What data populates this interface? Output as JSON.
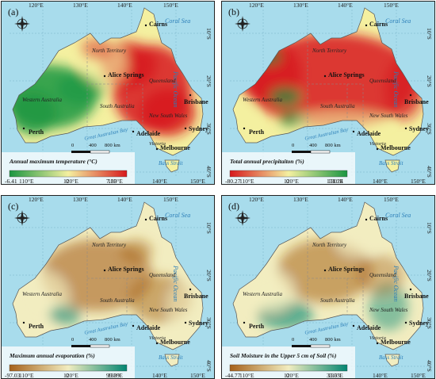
{
  "panels": [
    {
      "label": "(a)",
      "title": "Annual maximum temperature (°C)",
      "legend_min": "-6.41",
      "legend_mid": "0",
      "legend_max": "7.85",
      "scale_labels": [
        "0",
        "400",
        "800 km"
      ],
      "top_ticks": [
        "120°E",
        "130°E",
        "140°E",
        "150°E"
      ],
      "bottom_ticks": [
        "110°E",
        "120°E",
        "130°E",
        "140°E",
        "150°E"
      ],
      "left_ticks": [
        "10°S",
        "20°S",
        "30°S"
      ],
      "right_ticks": [
        "10°S",
        "20°S",
        "30°S",
        "40°S"
      ]
    },
    {
      "label": "(b)",
      "title": "Total annual precipitaiton (%)",
      "legend_min": "-80.27",
      "legend_mid": "0",
      "legend_max": "131.24",
      "scale_labels": [
        "0",
        "400",
        "800 km"
      ],
      "top_ticks": [
        "120°E",
        "130°E",
        "140°E",
        "150°E"
      ],
      "bottom_ticks": [
        "110°E",
        "120°E",
        "130°E",
        "140°E",
        "150°E"
      ],
      "left_ticks": [
        "10°S",
        "20°S",
        "30°S"
      ],
      "right_ticks": [
        "10°S",
        "20°S",
        "30°S",
        "40°S"
      ]
    },
    {
      "label": "(c)",
      "title": "Maximum annual evaporation (%)",
      "legend_min": "-97.03",
      "legend_mid": "0",
      "legend_max": "99.39",
      "scale_labels": [
        "0",
        "400",
        "800 km"
      ],
      "top_ticks": [
        "120°E",
        "130°E",
        "140°E",
        "150°E"
      ],
      "bottom_ticks": [
        "110°E",
        "120°E",
        "130°E",
        "140°E",
        "150°E"
      ],
      "left_ticks": [
        "10°S",
        "20°S",
        "30°S"
      ],
      "right_ticks": [
        "10°S",
        "20°S",
        "30°S",
        "40°S"
      ]
    },
    {
      "label": "(d)",
      "title": "Soil Moisture in the Upper 5 cm of Soil (%)",
      "legend_min": "-44.77",
      "legend_mid": "0",
      "legend_max": "33.53",
      "scale_labels": [
        "0",
        "400",
        "800 km"
      ],
      "top_ticks": [
        "120°E",
        "130°E",
        "140°E",
        "150°E"
      ],
      "bottom_ticks": [
        "110°E",
        "120°E",
        "130°E",
        "140°E",
        "150°E"
      ],
      "left_ticks": [
        "10°S",
        "20°S",
        "30°S"
      ],
      "right_ticks": [
        "10°S",
        "20°S",
        "30°S",
        "40°S"
      ]
    }
  ],
  "map_labels": {
    "coral_sea": "Coral Sea",
    "pacific_ocean": "Pacific Ocean",
    "great_australian_bay": "Great Australian Bay",
    "bass_strait": "Bass Strait",
    "northern_territory": "North Territory",
    "queensland": "Queensland",
    "western_australia": "Western Australia",
    "south_australia": "South Australia",
    "new_south_wales": "New South Wales",
    "victoria": "Victoria"
  },
  "cities": {
    "cairns": "Cairns",
    "alice_springs": "Alice Springs",
    "brisbane": "Brisbane",
    "perth": "Perth",
    "adelaide": "Adelaide",
    "sydney": "Sydney",
    "melbourne": "Melbourne"
  },
  "colors": {
    "sea": "#a8dcec",
    "panel_a": [
      "#1a9641",
      "#f4f0a0",
      "#d7191c"
    ],
    "panel_b": [
      "#d7191c",
      "#f4f0a0",
      "#1a9641"
    ],
    "panel_c": [
      "#a6611a",
      "#f2edc0",
      "#018571"
    ],
    "panel_d": [
      "#a6611a",
      "#f2edc0",
      "#018571"
    ]
  },
  "icons": [
    "compass-icon"
  ]
}
